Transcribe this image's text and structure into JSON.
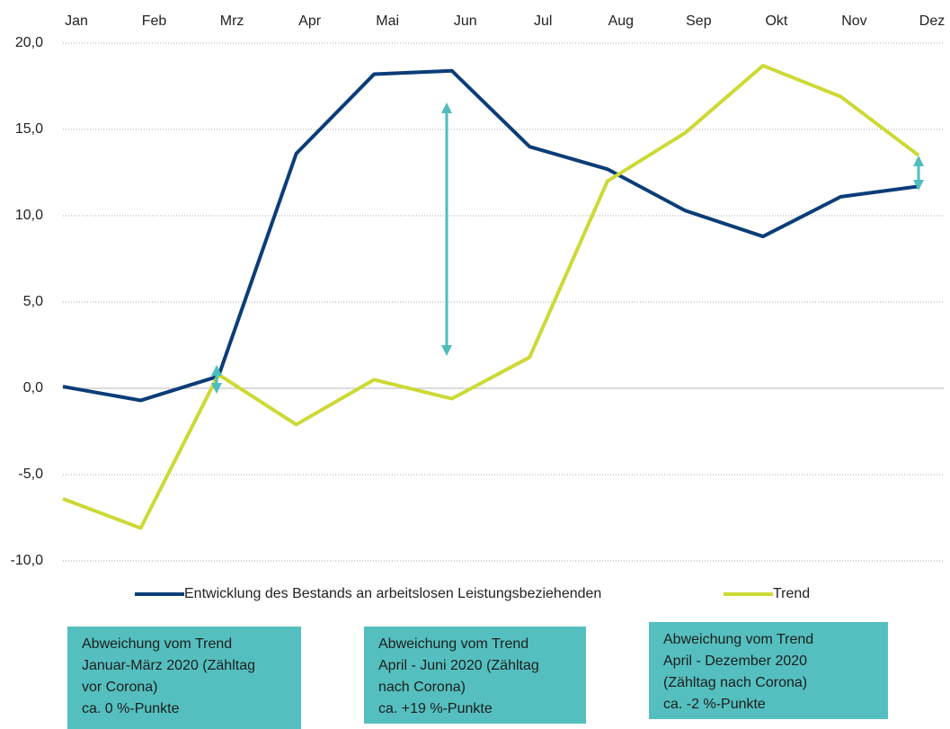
{
  "chart_data": {
    "type": "line",
    "categories": [
      "Jan",
      "Feb",
      "Mrz",
      "Apr",
      "Mai",
      "Jun",
      "Jul",
      "Aug",
      "Sep",
      "Okt",
      "Nov",
      "Dez"
    ],
    "series": [
      {
        "name": "Entwicklung des Bestands an arbeitslosen Leistungsbeziehenden",
        "color": "#0b3d78",
        "values": [
          0.1,
          -0.7,
          0.7,
          13.6,
          18.2,
          18.4,
          14.0,
          12.7,
          10.3,
          8.8,
          11.1,
          11.7
        ]
      },
      {
        "name": "Trend",
        "color": "#cdd935",
        "values": [
          -6.4,
          -8.1,
          0.8,
          -2.1,
          0.5,
          -0.6,
          1.8,
          12.0,
          14.8,
          18.7,
          16.9,
          13.5
        ]
      }
    ],
    "ylim": [
      -10,
      20
    ],
    "yticks": [
      {
        "value": -10,
        "label": "-10,0"
      },
      {
        "value": -5,
        "label": "-5,0"
      },
      {
        "value": 0,
        "label": "0,0"
      },
      {
        "value": 5,
        "label": "5,0"
      },
      {
        "value": 10,
        "label": "10,0"
      },
      {
        "value": 15,
        "label": "15,0"
      },
      {
        "value": 20,
        "label": "20,0"
      }
    ],
    "grid": true,
    "annotations": [
      [
        "Abweichung vom Trend",
        "Januar-März 2020 (Zähltag",
        "vor Corona)",
        "ca. 0 %-Punkte"
      ],
      [
        "Abweichung vom Trend",
        "April - Juni 2020 (Zähltag",
        "nach Corona)",
        "ca. +19 %-Punkte"
      ],
      [
        "Abweichung vom Trend",
        "April - Dezember 2020",
        "(Zähltag nach Corona)",
        "ca. -2 %-Punkte"
      ]
    ]
  }
}
